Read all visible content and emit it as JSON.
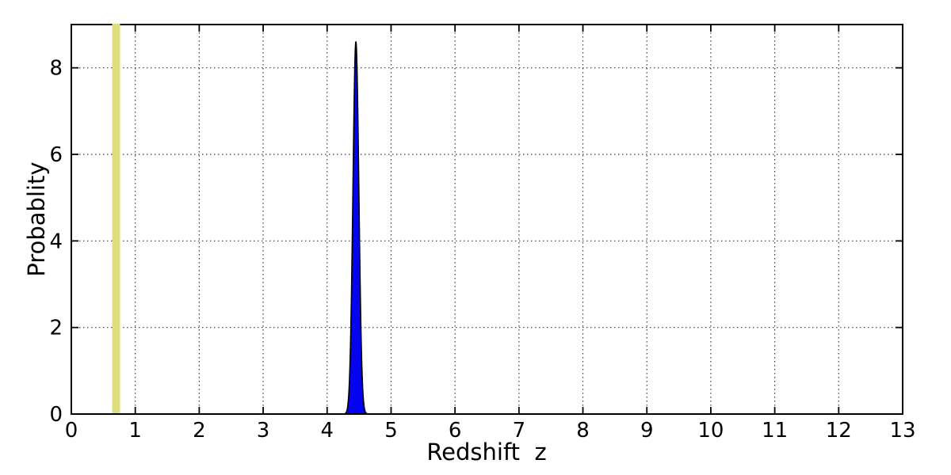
{
  "figure": {
    "background_color": "#ffffff",
    "frame_color": "#000000",
    "grid_color": "#3a3a3a"
  },
  "chart_data": {
    "type": "area",
    "title": "",
    "xlabel": "Redshift  z",
    "ylabel": "Probablity",
    "xlim": [
      0,
      13
    ],
    "ylim": [
      0,
      9
    ],
    "xticks": [
      0,
      1,
      2,
      3,
      4,
      5,
      6,
      7,
      8,
      9,
      10,
      11,
      12,
      13
    ],
    "yticks": [
      0,
      2,
      4,
      6,
      8
    ],
    "grid": {
      "on": true,
      "style": "dotted"
    },
    "legend": null,
    "tick_direction": "in",
    "series": [
      {
        "name": "redshift-probability-pdf",
        "type": "gaussian-area",
        "mean": 4.45,
        "sigma": 0.046,
        "peak": 8.6,
        "visible_base_range": [
          4.25,
          4.62
        ],
        "fill_color": "#0404f0",
        "edge_color": "#000000"
      },
      {
        "name": "reference-redshift-marker",
        "type": "vline",
        "x": 0.7,
        "band_halfwidth_data": 0.062,
        "color": "#dedd7f",
        "span": "full-height"
      }
    ]
  }
}
